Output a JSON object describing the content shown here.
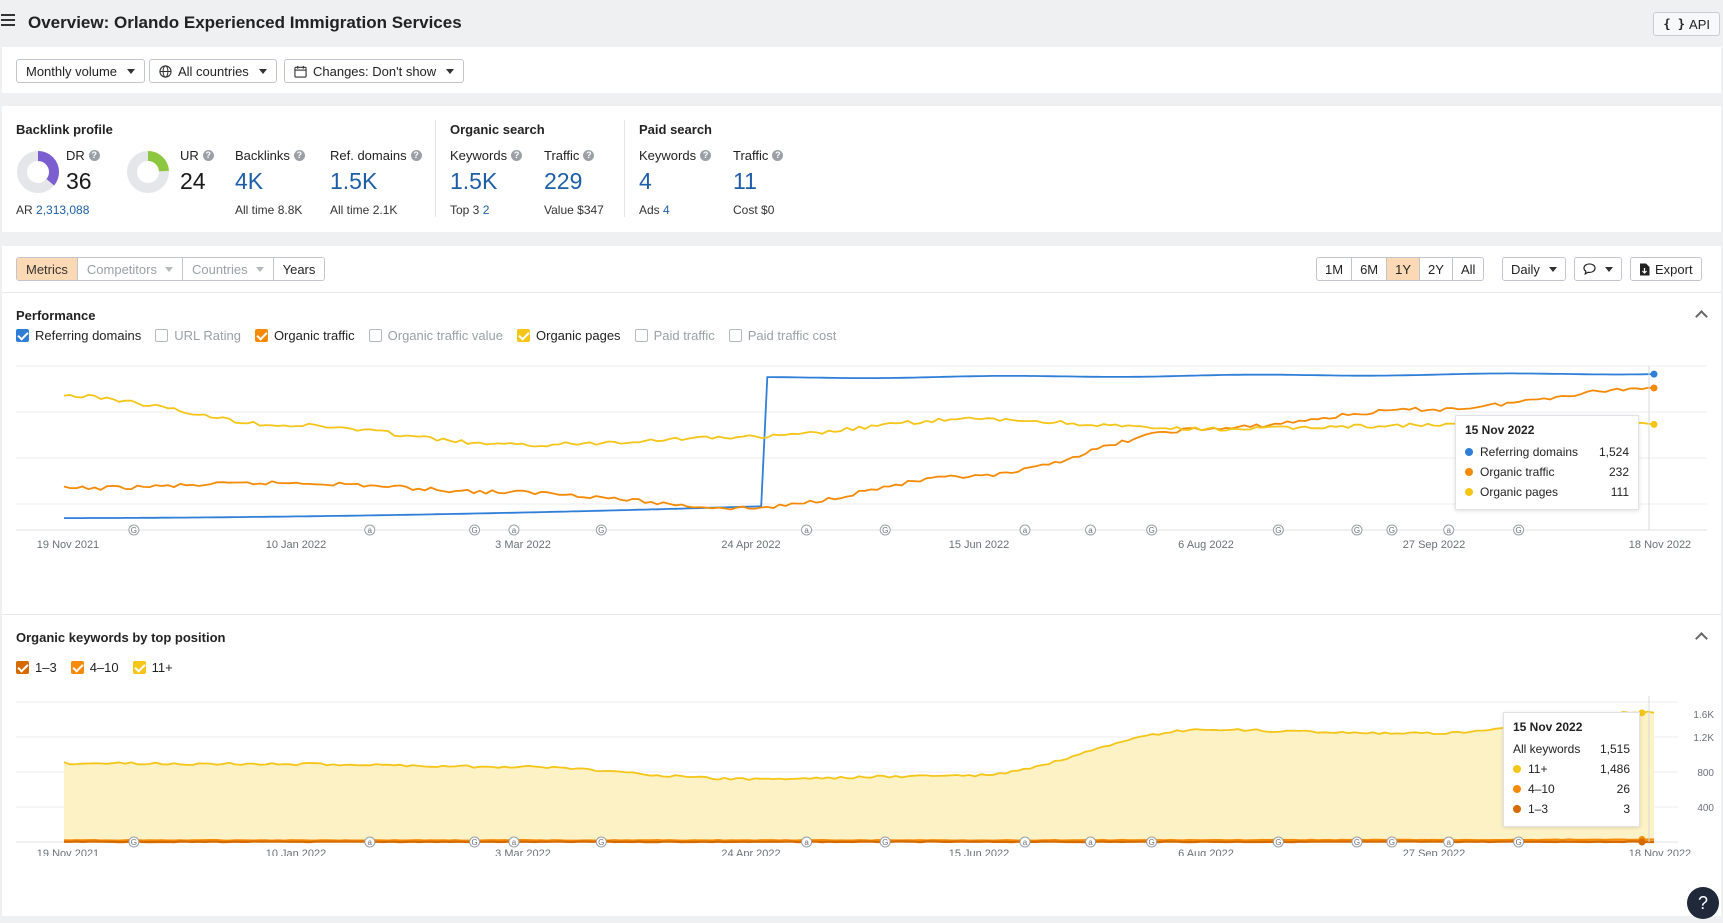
{
  "header": {
    "title": "Overview: Orlando Experienced Immigration Services",
    "api_label": "API"
  },
  "filters": {
    "volume": "Monthly volume",
    "countries": "All countries",
    "changes": "Changes: Don't show"
  },
  "backlink_profile": {
    "title": "Backlink profile",
    "dr": {
      "label": "DR",
      "value": "36",
      "fraction": 0.36
    },
    "ar": {
      "label": "AR",
      "value": "2,313,088"
    },
    "ur": {
      "label": "UR",
      "value": "24",
      "fraction": 0.24
    },
    "backlinks": {
      "label": "Backlinks",
      "value": "4K",
      "sub_label": "All time",
      "sub_value": "8.8K"
    },
    "ref_domains": {
      "label": "Ref. domains",
      "value": "1.5K",
      "sub_label": "All time",
      "sub_value": "2.1K"
    }
  },
  "organic_search": {
    "title": "Organic search",
    "keywords": {
      "label": "Keywords",
      "value": "1.5K",
      "sub_label": "Top 3",
      "sub_value": "2"
    },
    "traffic": {
      "label": "Traffic",
      "value": "229",
      "sub_label": "Value",
      "sub_value": "$347"
    }
  },
  "paid_search": {
    "title": "Paid search",
    "keywords": {
      "label": "Keywords",
      "value": "4",
      "sub_label": "Ads",
      "sub_value": "4"
    },
    "traffic": {
      "label": "Traffic",
      "value": "11",
      "sub_label": "Cost",
      "sub_value": "$0"
    }
  },
  "tabs": [
    "Metrics",
    "Competitors",
    "Countries",
    "Years"
  ],
  "ranges": [
    "1M",
    "6M",
    "1Y",
    "2Y",
    "All"
  ],
  "active_range": "1Y",
  "interval": "Daily",
  "export_label": "Export",
  "colors": {
    "blue": "#2f7ed8",
    "orange": "#f58a07",
    "yellow": "#f5c518",
    "dark_orange": "#d46a00"
  },
  "performance": {
    "title": "Performance",
    "legend": [
      {
        "label": "Referring domains",
        "checked": true,
        "color": "#2f7ed8"
      },
      {
        "label": "URL Rating",
        "checked": false
      },
      {
        "label": "Organic traffic",
        "checked": true,
        "color": "#f58a07"
      },
      {
        "label": "Organic traffic value",
        "checked": false
      },
      {
        "label": "Organic pages",
        "checked": true,
        "color": "#f5c518"
      },
      {
        "label": "Paid traffic",
        "checked": false
      },
      {
        "label": "Paid traffic cost",
        "checked": false
      }
    ],
    "tooltip": {
      "date": "15 Nov 2022",
      "rows": [
        {
          "label": "Referring domains",
          "value": "1,524",
          "color": "#2f7ed8"
        },
        {
          "label": "Organic traffic",
          "value": "232",
          "color": "#f58a07"
        },
        {
          "label": "Organic pages",
          "value": "111",
          "color": "#f5c518"
        }
      ]
    }
  },
  "keywords_block": {
    "title": "Organic keywords by top position",
    "legend": [
      {
        "label": "1–3",
        "color": "#d46a00"
      },
      {
        "label": "4–10",
        "color": "#f58a07"
      },
      {
        "label": "11+",
        "color": "#f5c518"
      }
    ],
    "tooltip": {
      "date": "15 Nov 2022",
      "total_label": "All keywords",
      "total_value": "1,515",
      "rows": [
        {
          "label": "11+",
          "value": "1,486",
          "color": "#f5c518"
        },
        {
          "label": "4–10",
          "value": "26",
          "color": "#f58a07"
        },
        {
          "label": "1–3",
          "value": "3",
          "color": "#d46a00"
        }
      ]
    }
  },
  "chart_data": [
    {
      "type": "line",
      "title": "Performance",
      "x": [
        "19 Nov 2021",
        "10 Jan 2022",
        "3 Mar 2022",
        "24 Apr 2022",
        "15 Jun 2022",
        "6 Aug 2022",
        "27 Sep 2022",
        "18 Nov 2022"
      ],
      "series": [
        {
          "name": "Referring domains",
          "values": [
            60,
            90,
            120,
            180,
            1480,
            1480,
            1490,
            1524
          ]
        },
        {
          "name": "Organic traffic",
          "values": [
            105,
            112,
            100,
            80,
            120,
            180,
            205,
            232
          ]
        },
        {
          "name": "Organic pages",
          "values": [
            125,
            110,
            100,
            104,
            113,
            108,
            110,
            111
          ]
        }
      ],
      "events": [
        {
          "date": "2021-12-05",
          "mark": "G"
        },
        {
          "date": "2022-01-28",
          "mark": "a"
        },
        {
          "date": "2022-02-21",
          "mark": "G"
        },
        {
          "date": "2022-03-02",
          "mark": "a"
        },
        {
          "date": "2022-03-22",
          "mark": "G"
        },
        {
          "date": "2022-05-08",
          "mark": "a"
        },
        {
          "date": "2022-05-26",
          "mark": "G"
        },
        {
          "date": "2022-06-27",
          "mark": "a"
        },
        {
          "date": "2022-07-12",
          "mark": "a"
        },
        {
          "date": "2022-07-26",
          "mark": "G"
        },
        {
          "date": "2022-08-24",
          "mark": "G"
        },
        {
          "date": "2022-09-11",
          "mark": "G"
        },
        {
          "date": "2022-09-19",
          "mark": "G"
        },
        {
          "date": "2022-10-02",
          "mark": "a"
        },
        {
          "date": "2022-10-18",
          "mark": "G"
        }
      ]
    },
    {
      "type": "area",
      "title": "Organic keywords by top position",
      "x": [
        "19 Nov 2021",
        "10 Jan 2022",
        "3 Mar 2022",
        "24 Apr 2022",
        "15 Jun 2022",
        "6 Aug 2022",
        "27 Sep 2022",
        "18 Nov 2022"
      ],
      "yticks": [
        "400",
        "800",
        "1.2K",
        "1.6K"
      ],
      "ylim": [
        0,
        1600
      ],
      "series": [
        {
          "name": "11+",
          "values": [
            900,
            890,
            860,
            720,
            760,
            1280,
            1240,
            1486
          ]
        },
        {
          "name": "4–10",
          "values": [
            18,
            18,
            18,
            18,
            18,
            20,
            22,
            26
          ]
        },
        {
          "name": "1–3",
          "values": [
            2,
            2,
            2,
            2,
            2,
            2,
            3,
            3
          ]
        }
      ]
    }
  ]
}
